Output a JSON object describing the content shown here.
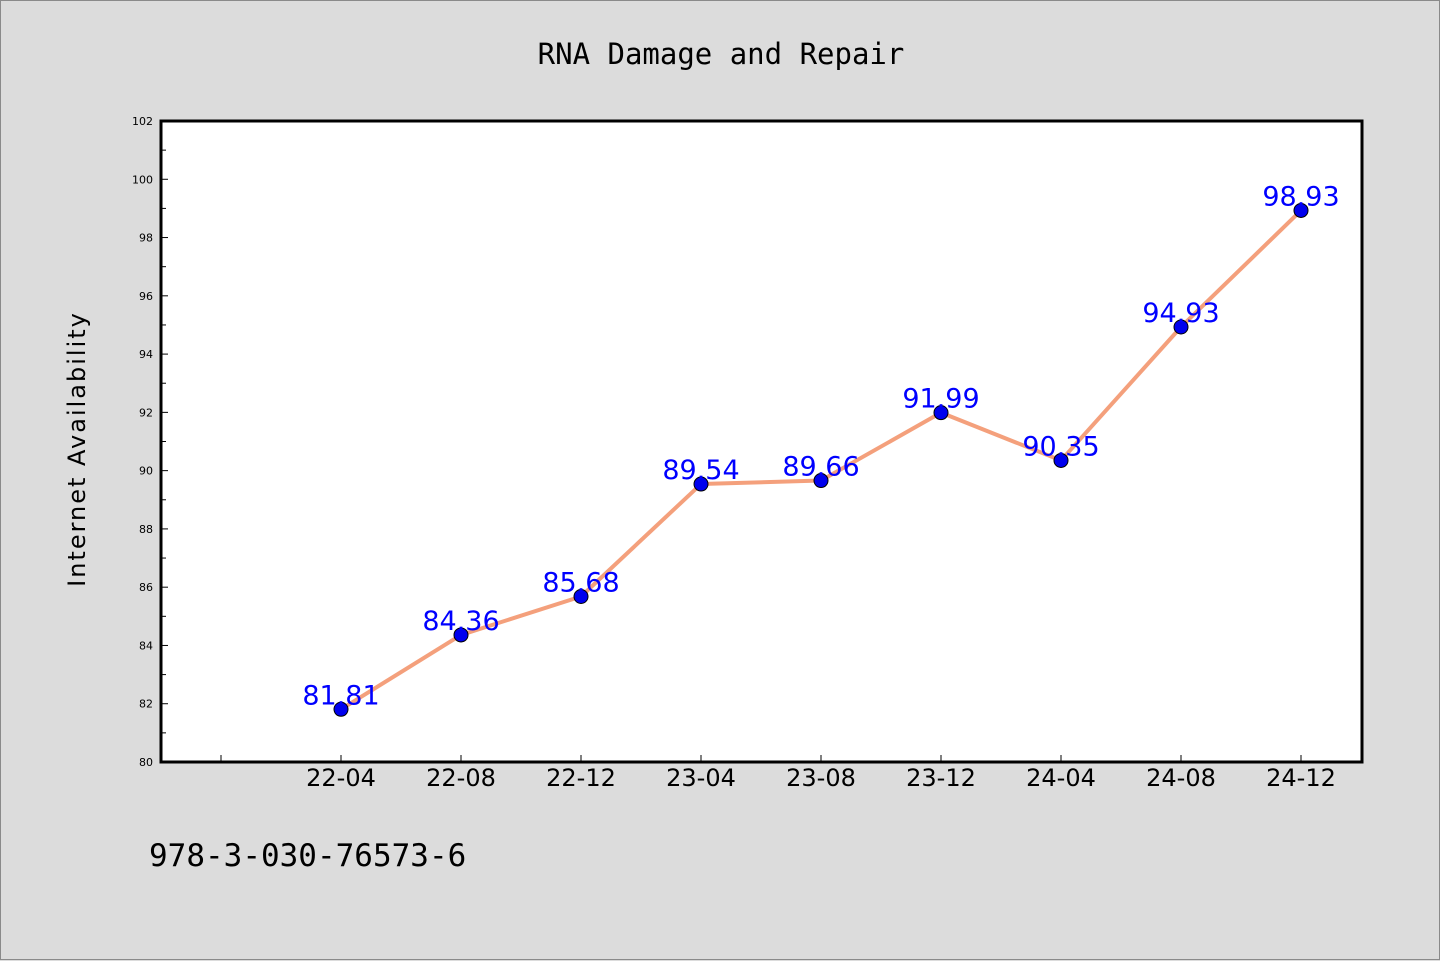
{
  "chart_data": {
    "type": "line",
    "title": "RNA Damage and Repair",
    "xlabel": "",
    "ylabel": "Internet Availability",
    "x": [
      "22-04",
      "22-08",
      "22-12",
      "23-04",
      "23-08",
      "23-12",
      "24-04",
      "24-08",
      "24-12"
    ],
    "series": [
      {
        "values": [
          81.81,
          84.36,
          85.68,
          89.54,
          89.66,
          91.99,
          90.35,
          94.93,
          98.93
        ],
        "labels": [
          "81.81",
          "84.36",
          "85.68",
          "89.54",
          "89.66",
          "91.99",
          "90.35",
          "94.93",
          "98.93"
        ]
      }
    ],
    "ylim": [
      80,
      102
    ],
    "yticks": [
      "80",
      "82",
      "84",
      "86",
      "88",
      "90",
      "92",
      "94",
      "96",
      "98",
      "100",
      "102"
    ],
    "grid": false,
    "legend": "none",
    "colors": {
      "line": "#f4a07c",
      "marker": "#0000ee",
      "data_label": "#0000ff",
      "background": "#dcdcdc",
      "plot_background": "#ffffff"
    }
  },
  "footer": {
    "identifier": "978-3-030-76573-6"
  }
}
